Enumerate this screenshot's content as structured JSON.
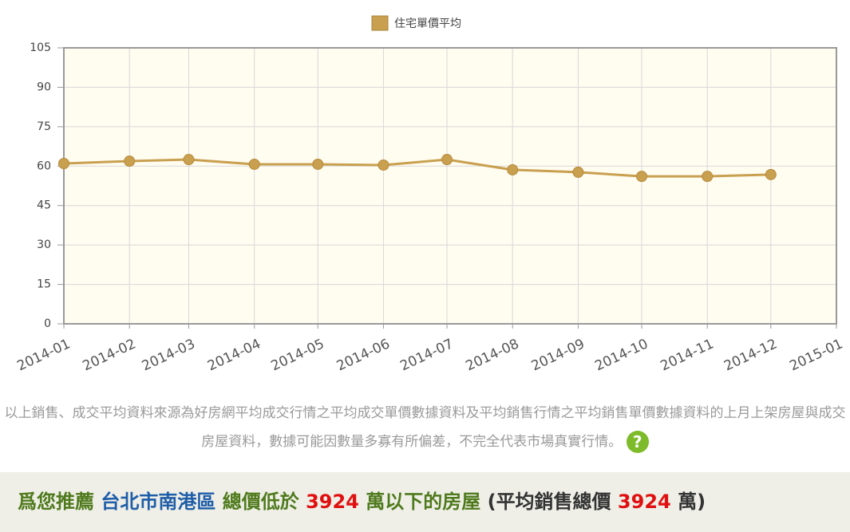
{
  "chart_data": {
    "type": "line",
    "x": [
      "2014-01",
      "2014-02",
      "2014-03",
      "2014-04",
      "2014-05",
      "2014-06",
      "2014-07",
      "2014-08",
      "2014-09",
      "2014-10",
      "2014-11",
      "2014-12"
    ],
    "series": [
      {
        "name": "住宅單價平均",
        "color": "#c9a050",
        "values": [
          61.0,
          61.9,
          62.5,
          60.7,
          60.7,
          60.4,
          62.5,
          58.6,
          57.7,
          56.1,
          56.1,
          56.8
        ]
      }
    ],
    "xlim": [
      "2014-01",
      "2015-01"
    ],
    "xticks": [
      "2014-01",
      "2014-02",
      "2014-03",
      "2014-04",
      "2014-05",
      "2014-06",
      "2014-07",
      "2014-08",
      "2014-09",
      "2014-10",
      "2014-11",
      "2014-12",
      "2015-01"
    ],
    "ylim": [
      0,
      105
    ],
    "yticks": [
      0,
      15,
      30,
      45,
      60,
      75,
      90,
      105
    ],
    "grid": true,
    "legend": "top"
  },
  "note": {
    "text": "以上銷售、成交平均資料來源為好房網平均成交行情之平均成交單價數據資料及平均銷售行情之平均銷售單價數據資料的上月上架房屋與成交房屋資料，數據可能因數量多寡有所偏差，不完全代表市場真實行情。",
    "help": "?"
  },
  "recommend": {
    "lead": "爲您推薦",
    "area": "台北市南港區",
    "below": "總價低於",
    "price": "3924",
    "unit": "萬以下的房屋",
    "avg_open": "(平均銷售總價",
    "avg_price": "3924",
    "avg_close": "萬)"
  }
}
